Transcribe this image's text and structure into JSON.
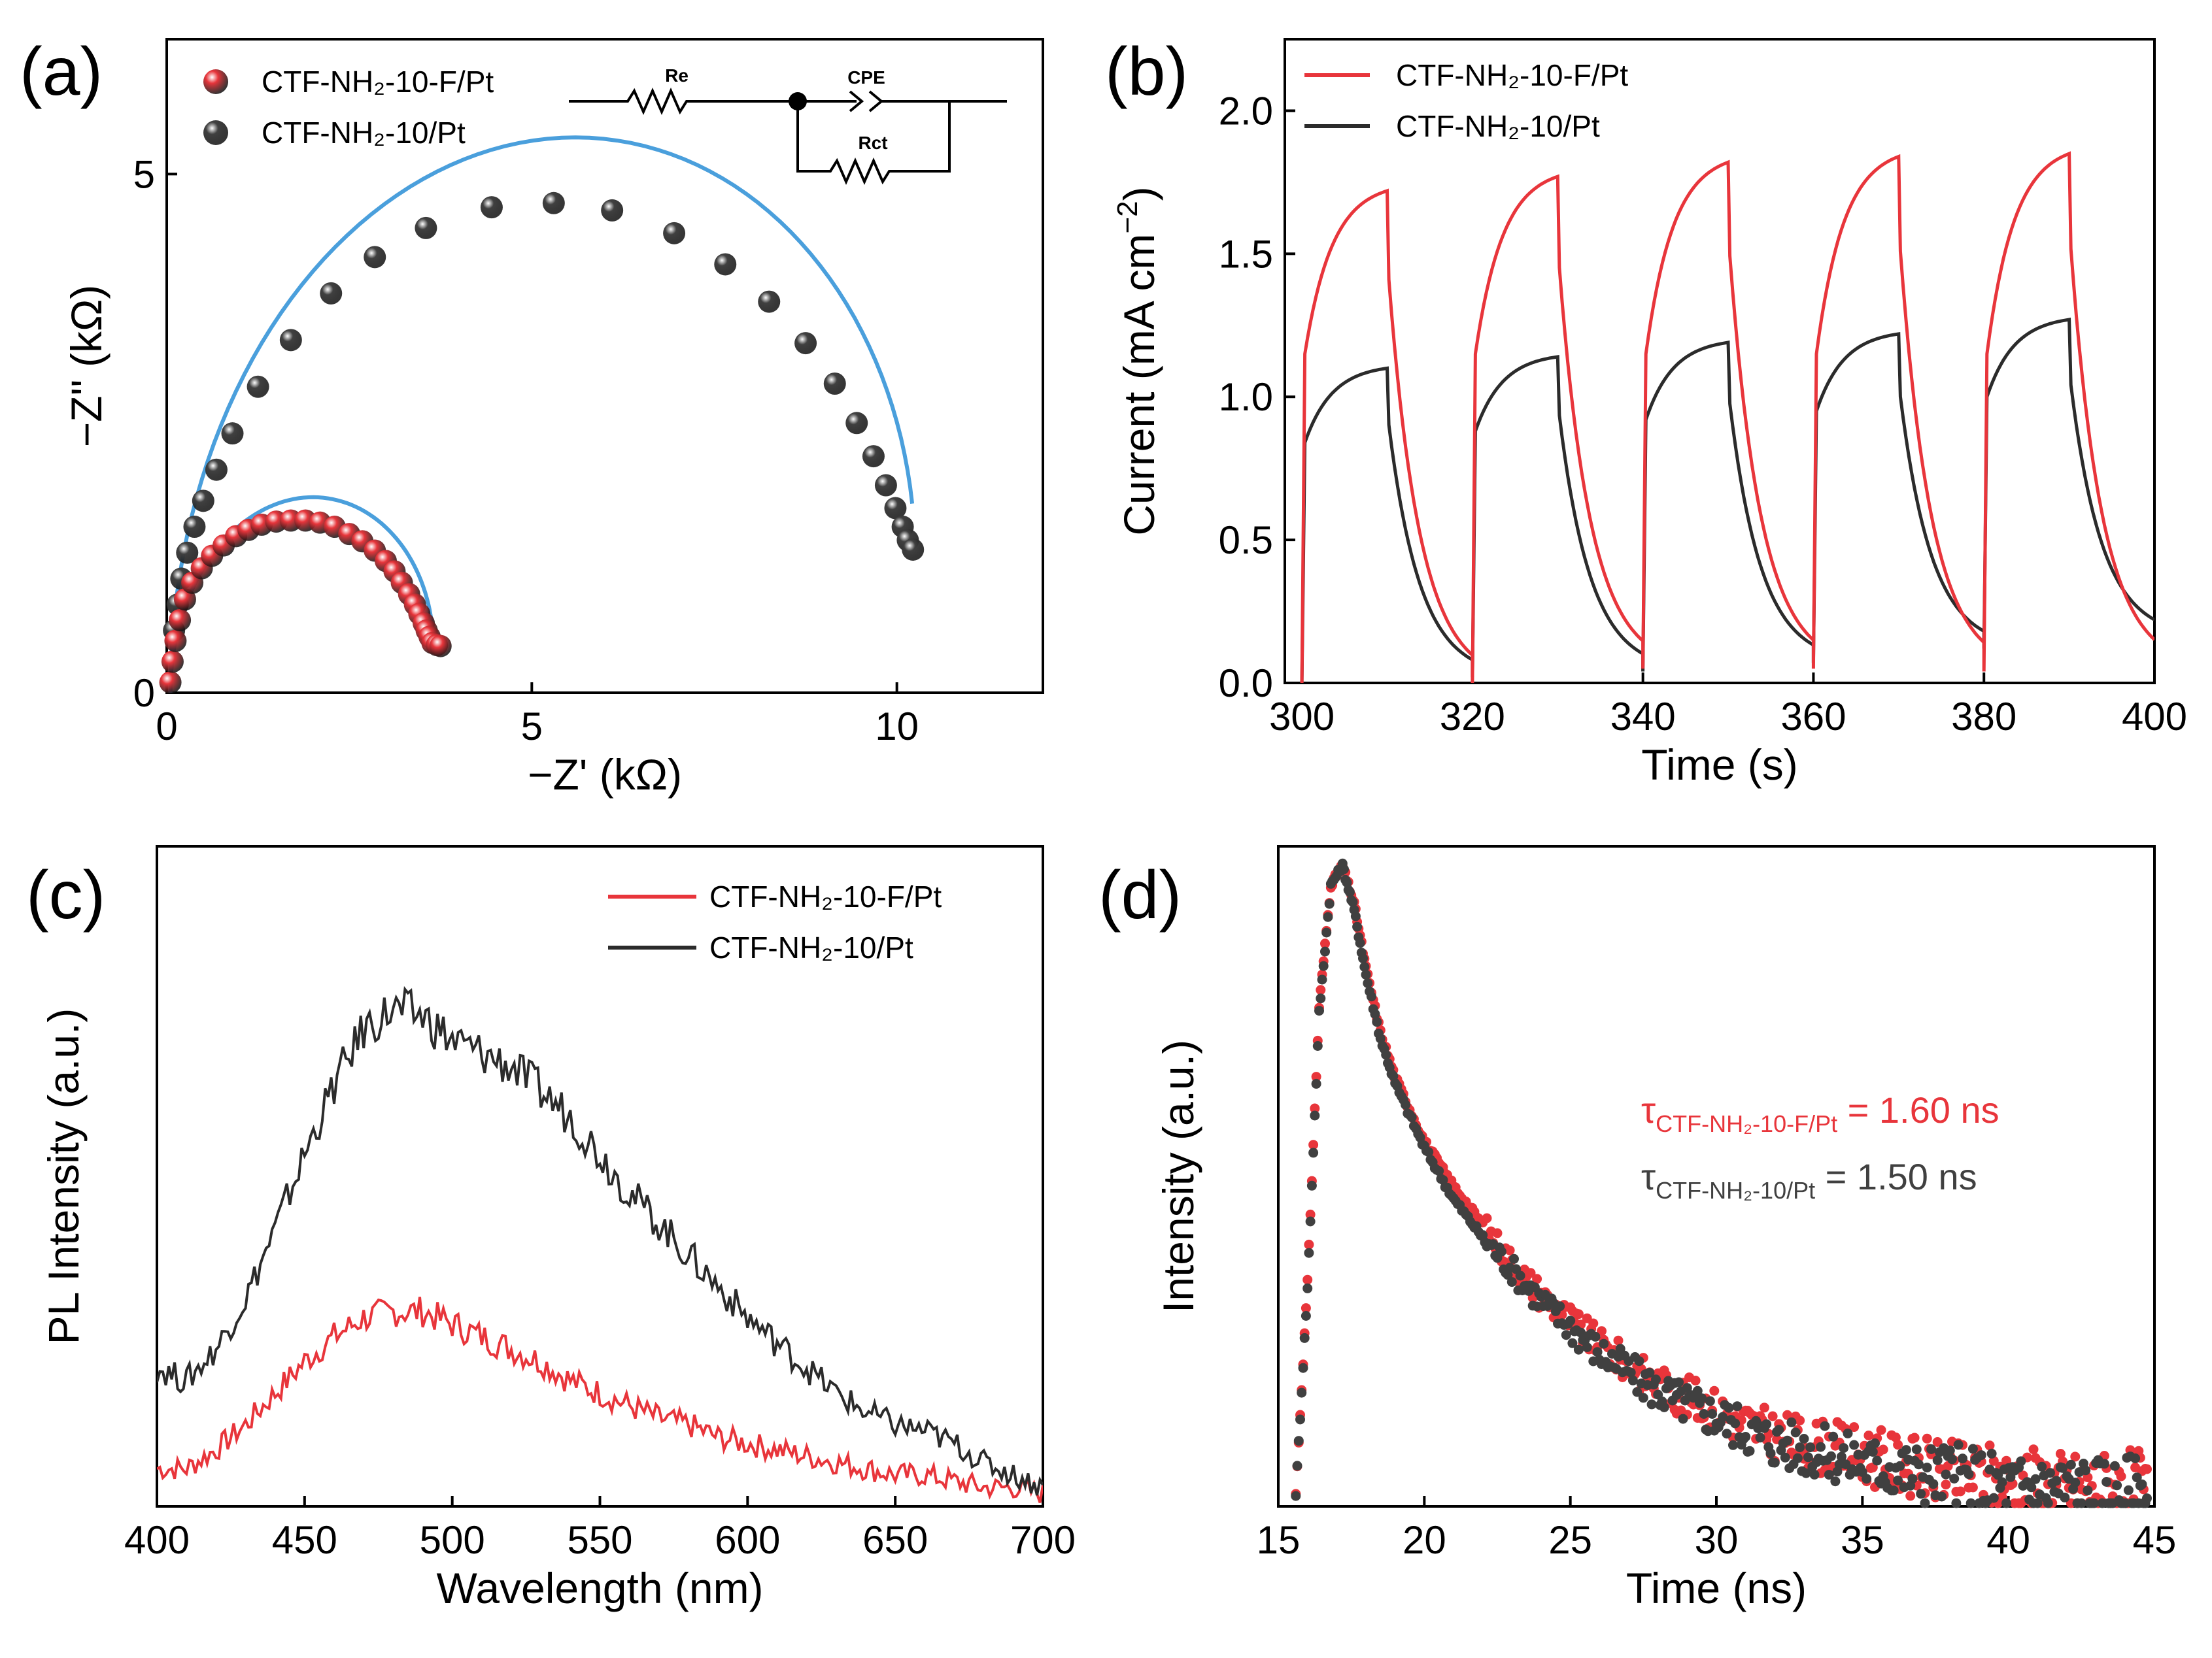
{
  "chart_data": [
    {
      "id": "a",
      "panel_label": "(a)",
      "type": "scatter",
      "xlabel": "−Z' (kΩ)",
      "ylabel": "−Z'' (kΩ)",
      "xlim": [
        0,
        12
      ],
      "ylim": [
        0,
        6.3
      ],
      "xticks": [
        0,
        5,
        10
      ],
      "yticks": [
        0,
        5
      ],
      "series": [
        {
          "name": "CTF-NH2-10-F/Pt",
          "legend_label": "CTF-NH₂-10-F/Pt",
          "color": "#e8353b",
          "fit_color": "#4a9fdc",
          "semicircle": {
            "r0": 0.05,
            "r1": 3.65,
            "dz": 0.45
          },
          "x": [
            0.05,
            0.08,
            0.12,
            0.18,
            0.25,
            0.35,
            0.48,
            0.62,
            0.78,
            0.95,
            1.12,
            1.3,
            1.5,
            1.7,
            1.9,
            2.1,
            2.3,
            2.5,
            2.68,
            2.85,
            3.0,
            3.12,
            3.22,
            3.32,
            3.4,
            3.46,
            3.52,
            3.56,
            3.6,
            3.64,
            3.7,
            3.75
          ],
          "y": [
            0.1,
            0.3,
            0.5,
            0.7,
            0.9,
            1.06,
            1.2,
            1.32,
            1.42,
            1.51,
            1.57,
            1.62,
            1.65,
            1.66,
            1.66,
            1.64,
            1.6,
            1.53,
            1.46,
            1.37,
            1.27,
            1.17,
            1.06,
            0.95,
            0.85,
            0.76,
            0.67,
            0.6,
            0.54,
            0.48,
            0.46,
            0.45
          ]
        },
        {
          "name": "CTF-NH2-10/Pt",
          "legend_label": "CTF-NH₂-10/Pt",
          "color": "#404040",
          "fit_color": "#4a9fdc",
          "semicircle": {
            "r0": 0.05,
            "r1": 10.25,
            "dz": 1.3
          },
          "x": [
            0.1,
            0.15,
            0.2,
            0.28,
            0.38,
            0.5,
            0.68,
            0.9,
            1.25,
            1.7,
            2.25,
            2.85,
            3.55,
            4.45,
            5.3,
            6.1,
            6.95,
            7.65,
            8.25,
            8.75,
            9.15,
            9.45,
            9.68,
            9.85,
            9.98,
            10.08,
            10.15,
            10.22
          ],
          "y": [
            0.6,
            0.85,
            1.1,
            1.35,
            1.6,
            1.85,
            2.15,
            2.5,
            2.95,
            3.4,
            3.85,
            4.2,
            4.48,
            4.68,
            4.72,
            4.65,
            4.43,
            4.13,
            3.77,
            3.37,
            2.98,
            2.6,
            2.28,
            2.0,
            1.78,
            1.6,
            1.47,
            1.38
          ]
        }
      ],
      "circuit": {
        "labels": [
          "Re",
          "CPE",
          "Rct"
        ]
      }
    },
    {
      "id": "b",
      "panel_label": "(b)",
      "type": "line",
      "xlabel": "Time (s)",
      "ylabel_main": "Current (mA cm",
      "ylabel_sup": "−2",
      "ylabel_end": ")",
      "xlim": [
        298,
        400
      ],
      "ylim": [
        0,
        2.25
      ],
      "xticks": [
        300,
        320,
        340,
        360,
        380,
        400
      ],
      "yticks": [
        0.0,
        0.5,
        1.0,
        1.5,
        2.0
      ],
      "ytick_labels": [
        "0.0",
        "0.5",
        "1.0",
        "1.5",
        "2.0"
      ],
      "period": 20,
      "on_duration": 10,
      "series": [
        {
          "name": "CTF-NH2-10-F/Pt",
          "legend_label": "CTF-NH₂-10-F/Pt",
          "color": "#e8353b",
          "cycles": [
            {
              "on": 300,
              "jump": 1.15,
              "peak": 1.72,
              "decay_end": 0.0
            },
            {
              "on": 320,
              "jump": 1.15,
              "peak": 1.77,
              "decay_end": 0.05
            },
            {
              "on": 340,
              "jump": 1.15,
              "peak": 1.82,
              "decay_end": 0.05
            },
            {
              "on": 360,
              "jump": 1.15,
              "peak": 1.84,
              "decay_end": 0.04
            },
            {
              "on": 380,
              "jump": 1.15,
              "peak": 1.85,
              "decay_end": 0.05
            }
          ]
        },
        {
          "name": "CTF-NH2-10/Pt",
          "legend_label": "CTF-NH₂-10/Pt",
          "color": "#2b2b2b",
          "cycles": [
            {
              "on": 300,
              "jump": 0.84,
              "peak": 1.1,
              "decay_end": 0.02
            },
            {
              "on": 320,
              "jump": 0.88,
              "peak": 1.14,
              "decay_end": 0.04
            },
            {
              "on": 340,
              "jump": 0.92,
              "peak": 1.19,
              "decay_end": 0.07
            },
            {
              "on": 360,
              "jump": 0.95,
              "peak": 1.22,
              "decay_end": 0.12
            },
            {
              "on": 380,
              "jump": 1.0,
              "peak": 1.27,
              "decay_end": 0.16
            }
          ]
        }
      ]
    },
    {
      "id": "c",
      "panel_label": "(c)",
      "type": "line",
      "xlabel": "Wavelength (nm)",
      "ylabel": "PL Intensity (a.u.)",
      "xlim": [
        400,
        700
      ],
      "ylim": [
        0,
        1.05
      ],
      "xticks": [
        400,
        450,
        500,
        550,
        600,
        650,
        700
      ],
      "series": [
        {
          "name": "CTF-NH2-10-F/Pt",
          "legend_label": "CTF-NH₂-10-F/Pt",
          "color": "#e8353b",
          "x": [
            400,
            410,
            420,
            430,
            440,
            450,
            460,
            470,
            480,
            490,
            500,
            510,
            520,
            530,
            540,
            550,
            560,
            570,
            580,
            590,
            600,
            610,
            620,
            630,
            640,
            650,
            660,
            670,
            680,
            690,
            700
          ],
          "y": [
            0.06,
            0.06,
            0.09,
            0.13,
            0.18,
            0.23,
            0.27,
            0.3,
            0.31,
            0.31,
            0.29,
            0.27,
            0.25,
            0.23,
            0.2,
            0.18,
            0.16,
            0.14,
            0.13,
            0.11,
            0.1,
            0.09,
            0.08,
            0.07,
            0.06,
            0.05,
            0.05,
            0.04,
            0.03,
            0.03,
            0.02
          ]
        },
        {
          "name": "CTF-NH2-10/Pt",
          "legend_label": "CTF-NH₂-10/Pt",
          "color": "#2b2b2b",
          "x": [
            400,
            410,
            420,
            430,
            440,
            450,
            460,
            470,
            480,
            490,
            500,
            510,
            520,
            530,
            540,
            550,
            560,
            570,
            580,
            590,
            600,
            610,
            620,
            630,
            640,
            650,
            660,
            670,
            680,
            690,
            700
          ],
          "y": [
            0.22,
            0.2,
            0.25,
            0.33,
            0.44,
            0.56,
            0.67,
            0.76,
            0.79,
            0.78,
            0.74,
            0.72,
            0.7,
            0.66,
            0.62,
            0.56,
            0.5,
            0.45,
            0.4,
            0.35,
            0.3,
            0.26,
            0.22,
            0.18,
            0.15,
            0.13,
            0.12,
            0.1,
            0.07,
            0.05,
            0.03
          ]
        }
      ]
    },
    {
      "id": "d",
      "panel_label": "(d)",
      "type": "scatter",
      "xlabel": "Time (ns)",
      "ylabel": "Intensity (a.u.)",
      "xlim": [
        15,
        45
      ],
      "ylim": [
        0,
        1.03
      ],
      "xticks": [
        15,
        20,
        25,
        30,
        35,
        40,
        45
      ],
      "series": [
        {
          "name": "CTF-NH2-10-F/Pt",
          "color": "#e8353b",
          "tau_symbol": "τ",
          "tau_sub": "CTF-NH₂-10-F/Pt",
          "tau_value": " = 1.60 ns",
          "x": [
            15.6,
            16.0,
            16.4,
            16.8,
            17.2,
            17.6,
            18.0,
            18.5,
            19.0,
            20.0,
            21.0,
            22.0,
            23.0,
            24.0,
            25.0,
            26.0,
            27.0,
            28.0,
            29.0,
            30.0,
            31.0,
            32.0,
            33.0,
            34.0,
            35.0,
            36.0,
            37.0,
            38.0,
            39.0,
            40.0,
            41.0,
            42.0,
            43.0,
            44.0,
            44.8
          ],
          "y": [
            0.02,
            0.35,
            0.78,
            0.97,
            1.0,
            0.94,
            0.84,
            0.74,
            0.67,
            0.57,
            0.5,
            0.44,
            0.38,
            0.33,
            0.29,
            0.25,
            0.22,
            0.19,
            0.17,
            0.15,
            0.13,
            0.11,
            0.1,
            0.09,
            0.08,
            0.07,
            0.06,
            0.05,
            0.05,
            0.04,
            0.04,
            0.03,
            0.03,
            0.03,
            0.02
          ]
        },
        {
          "name": "CTF-NH2-10/Pt",
          "color": "#404040",
          "tau_symbol": "τ",
          "tau_sub": "CTF-NH₂-10/Pt",
          "tau_value": " = 1.50 ns",
          "x": [
            15.6,
            16.0,
            16.4,
            16.8,
            17.2,
            17.6,
            18.0,
            18.5,
            19.0,
            20.0,
            21.0,
            22.0,
            23.0,
            24.0,
            25.0,
            26.0,
            27.0,
            28.0,
            29.0,
            30.0,
            31.0,
            32.0,
            33.0,
            34.0,
            35.0,
            36.0,
            37.0,
            38.0,
            39.0,
            40.0,
            41.0,
            42.0,
            43.0,
            44.0,
            44.8
          ],
          "y": [
            0.02,
            0.34,
            0.77,
            0.97,
            1.0,
            0.93,
            0.83,
            0.73,
            0.66,
            0.56,
            0.48,
            0.42,
            0.37,
            0.32,
            0.28,
            0.24,
            0.21,
            0.18,
            0.16,
            0.14,
            0.12,
            0.1,
            0.09,
            0.08,
            0.07,
            0.06,
            0.05,
            0.05,
            0.04,
            0.03,
            0.03,
            0.03,
            0.02,
            0.02,
            0.02
          ]
        }
      ]
    }
  ]
}
